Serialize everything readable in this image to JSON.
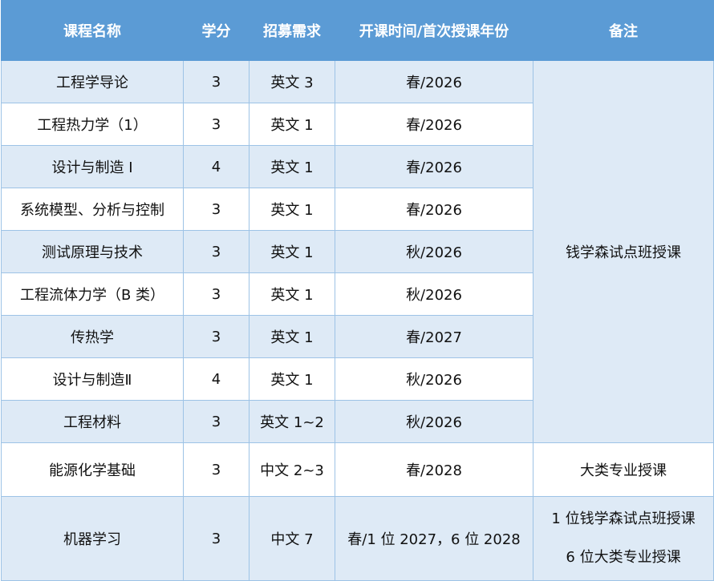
{
  "colors": {
    "header": "#5b9bd5",
    "row_tint": "#deeaf6",
    "border": "#9dc3e6"
  },
  "headers": [
    "课程名称",
    "学分",
    "招募需求",
    "开课时间/首次授课年份",
    "备注"
  ],
  "rows": [
    {
      "name": "工程学导论",
      "credit": "3",
      "req": "英文 3",
      "time": "春/2026"
    },
    {
      "name": "工程热力学（1）",
      "credit": "3",
      "req": "英文 1",
      "time": "春/2026"
    },
    {
      "name": "设计与制造 I",
      "credit": "4",
      "req": "英文 1",
      "time": "春/2026"
    },
    {
      "name": "系统模型、分析与控制",
      "credit": "3",
      "req": "英文 1",
      "time": "春/2026"
    },
    {
      "name": "测试原理与技术",
      "credit": "3",
      "req": "英文 1",
      "time": "秋/2026"
    },
    {
      "name": "工程流体力学（B 类）",
      "credit": "3",
      "req": "英文 1",
      "time": "秋/2026"
    },
    {
      "name": "传热学",
      "credit": "3",
      "req": "英文 1",
      "time": "春/2027"
    },
    {
      "name": "设计与制造Ⅱ",
      "credit": "4",
      "req": "英文 1",
      "time": "秋/2026"
    },
    {
      "name": "工程材料",
      "credit": "3",
      "req": "英文 1~2",
      "time": "秋/2026"
    },
    {
      "name": "能源化学基础",
      "credit": "3",
      "req": "中文 2~3",
      "time": "春/2028",
      "note": "大类专业授课"
    },
    {
      "name": "机器学习",
      "credit": "3",
      "req": "中文 7",
      "time": "春/1 位 2027，6 位 2028",
      "note_lines": [
        "1 位钱学森试点班授课",
        "6 位大类专业授课"
      ]
    }
  ],
  "merged_note": "钱学森试点班授课"
}
